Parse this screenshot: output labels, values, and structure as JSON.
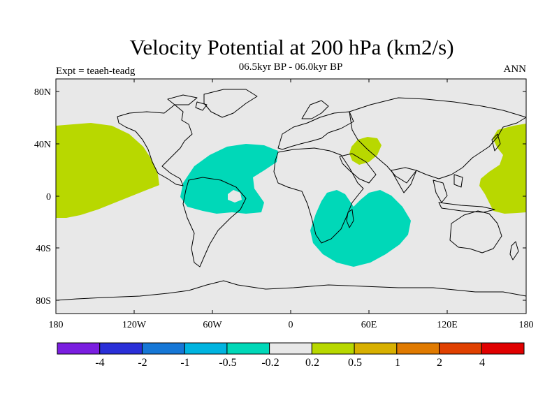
{
  "header": {
    "title": "Velocity Potential at 200 hPa (km2/s)",
    "subtitle": "06.5kyr BP - 06.0kyr BP",
    "experiment": "Expt = teaeh-teadg",
    "season": "ANN"
  },
  "axes": {
    "y_ticks": [
      "80N",
      "40N",
      "0",
      "40S",
      "80S"
    ],
    "x_ticks": [
      "180",
      "120W",
      "60W",
      "0",
      "60E",
      "120E",
      "180"
    ]
  },
  "colorbar": {
    "colors": [
      "#7a1ee0",
      "#2a2fd8",
      "#1677d6",
      "#00b4e0",
      "#00d8b8",
      "#e8e8e8",
      "#b8d800",
      "#d8b000",
      "#e07a00",
      "#e04000",
      "#e00000"
    ],
    "labels": [
      "-4",
      "-2",
      "-1",
      "-0.5",
      "-0.2",
      "0.2",
      "0.5",
      "1",
      "2",
      "4"
    ]
  },
  "map_colors": {
    "background": "#e8e8e8",
    "positive": "#b8d800",
    "negative": "#00d8b8"
  }
}
